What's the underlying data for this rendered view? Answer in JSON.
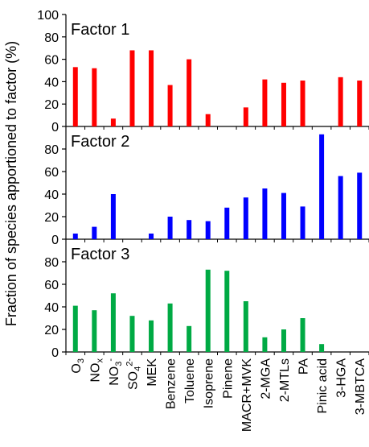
{
  "chart_data": {
    "type": "bar",
    "ylabel": "Fraction of species apportioned to factor (%)",
    "ylim_top": [
      0,
      100
    ],
    "ylim_lower": [
      0,
      90
    ],
    "categories": [
      "O3",
      "NOx",
      "NO3-",
      "SO42-",
      "MEK",
      "Benzene",
      "Toluene",
      "Isoprene",
      "Pinene",
      "MACR+MVK",
      "2-MGA",
      "2-MTLs",
      "PA",
      "Pinic acid",
      "3-HGA",
      "3-MBTCA"
    ],
    "series": [
      {
        "name": "Factor 1",
        "color": "#ff0000",
        "values": [
          53,
          52,
          7,
          68,
          68,
          37,
          60,
          11,
          0,
          17,
          42,
          39,
          41,
          0,
          44,
          41
        ]
      },
      {
        "name": "Factor 2",
        "color": "#0000ff",
        "values": [
          5,
          11,
          40,
          0,
          5,
          20,
          17,
          16,
          28,
          37,
          45,
          41,
          29,
          93,
          56,
          59
        ]
      },
      {
        "name": "Factor 3",
        "color": "#00aa44",
        "values": [
          41,
          37,
          52,
          32,
          28,
          43,
          23,
          73,
          72,
          45,
          13,
          20,
          30,
          7,
          0,
          0
        ]
      }
    ]
  }
}
